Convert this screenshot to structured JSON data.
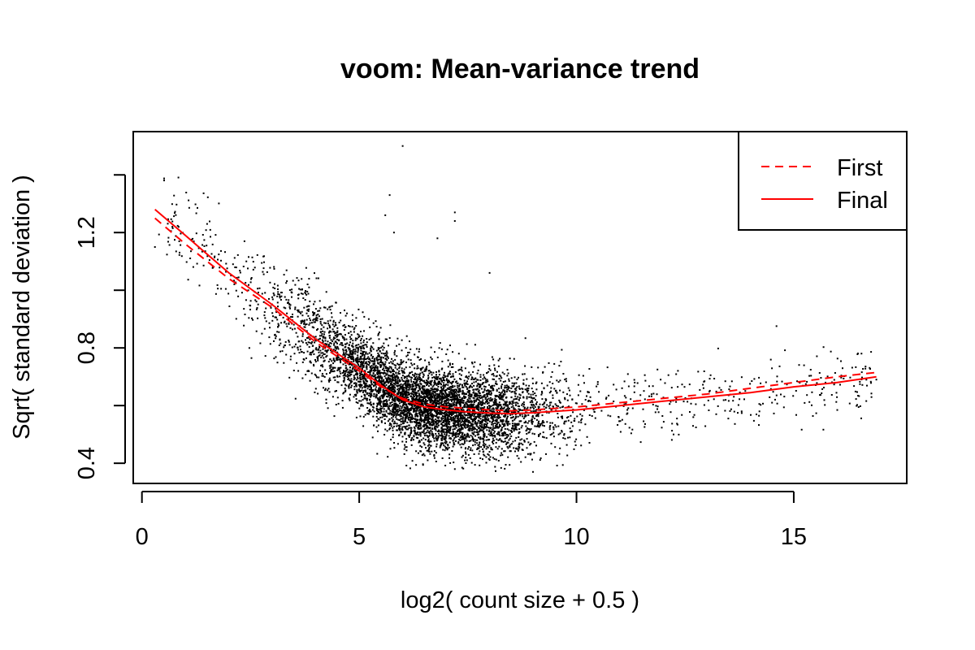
{
  "chart_data": {
    "type": "scatter",
    "title": "voom: Mean-variance trend",
    "xlabel": "log2( count size + 0.5 )",
    "ylabel": "Sqrt( standard deviation )",
    "xlim": [
      -0.2,
      17.6
    ],
    "ylim": [
      0.33,
      1.55
    ],
    "x_ticks": [
      0,
      5,
      10,
      15
    ],
    "y_ticks": [
      0.4,
      0.8,
      1.2
    ],
    "y_ticks_unlabeled": [
      0.6,
      1.0,
      1.4
    ],
    "grid": false,
    "legend_position": "top-right",
    "point_color": "#000000",
    "line_color": "#ff0000",
    "series": [
      {
        "name": "First",
        "style": "dashed",
        "x": [
          0.3,
          1,
          2,
          3,
          4,
          5,
          5.5,
          6,
          6.5,
          7,
          7.5,
          8,
          8.5,
          9,
          10,
          11,
          12,
          13,
          14,
          15,
          16,
          16.9
        ],
        "y": [
          1.25,
          1.16,
          1.04,
          0.94,
          0.82,
          0.72,
          0.665,
          0.625,
          0.605,
          0.595,
          0.59,
          0.585,
          0.582,
          0.585,
          0.595,
          0.61,
          0.625,
          0.64,
          0.66,
          0.68,
          0.7,
          0.715
        ]
      },
      {
        "name": "Final",
        "style": "solid",
        "x": [
          0.3,
          1,
          2,
          3,
          4,
          5,
          5.5,
          6,
          6.5,
          7,
          7.5,
          8,
          8.5,
          9,
          10,
          11,
          12,
          13,
          14,
          15,
          16,
          16.9
        ],
        "y": [
          1.28,
          1.19,
          1.06,
          0.95,
          0.83,
          0.73,
          0.67,
          0.62,
          0.595,
          0.585,
          0.578,
          0.574,
          0.572,
          0.575,
          0.585,
          0.6,
          0.615,
          0.63,
          0.645,
          0.665,
          0.68,
          0.7
        ]
      }
    ],
    "scatter_summary": {
      "description_values": "approx. 6000 genes; dense cloud centered near x=6.5, y=0.6",
      "n_points": 6000,
      "notable_points": [
        [
          0.3,
          1.15
        ],
        [
          0.7,
          1.22
        ],
        [
          1.5,
          1.23
        ],
        [
          6.0,
          1.5
        ],
        [
          5.7,
          1.33
        ],
        [
          5.6,
          1.26
        ],
        [
          7.2,
          1.27
        ],
        [
          5.8,
          1.2
        ],
        [
          7.2,
          1.24
        ],
        [
          6.8,
          1.18
        ],
        [
          8.0,
          1.06
        ],
        [
          16.9,
          0.69
        ],
        [
          14.5,
          0.61
        ],
        [
          13.8,
          0.58
        ],
        [
          7.2,
          0.38
        ],
        [
          9.0,
          0.37
        ]
      ]
    }
  }
}
